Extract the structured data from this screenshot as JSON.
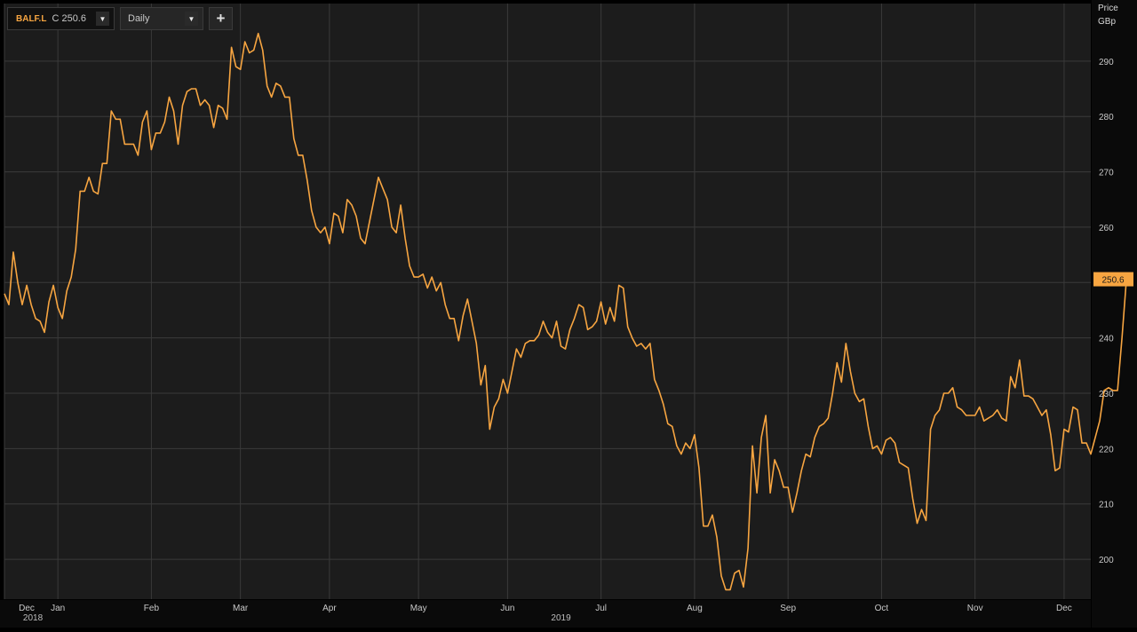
{
  "toolbar": {
    "symbol": "BALF.L",
    "close_label": "C 250.6",
    "interval": "Daily",
    "dropdown_glyph": "▼",
    "add_glyph": "+"
  },
  "axis": {
    "price_label": "Price",
    "currency_label": "GBp"
  },
  "last_price_badge": "250.6",
  "colors": {
    "background": "#1c1c1c",
    "line": "#f7a541",
    "grid": "#3a3a3a",
    "badge": "#f7a541"
  },
  "chart_data": {
    "type": "line",
    "title": "",
    "series": [
      {
        "values": [
          248,
          246,
          255.5,
          250,
          246,
          249.5,
          246,
          243.5,
          243,
          241,
          246.5,
          249.5,
          245.5,
          243.5,
          248.5,
          251,
          256,
          266.5,
          266.5,
          269,
          266.5,
          266,
          271.5,
          271.5,
          281,
          279.5,
          279.5,
          275,
          275,
          275,
          273,
          279,
          281,
          274,
          277,
          277,
          279,
          283.5,
          281,
          275,
          282,
          284.5,
          285,
          285,
          282,
          283,
          282,
          278,
          282,
          281.5,
          279.5,
          292.5,
          289,
          288.5,
          293.5,
          291.5,
          292,
          295,
          292,
          285.5,
          283.5,
          286,
          285.5,
          283.5,
          283.5,
          276,
          273,
          273,
          268.5,
          263,
          260,
          259,
          260,
          257,
          262.5,
          262,
          259,
          265,
          264,
          262,
          258,
          257,
          261,
          265,
          269,
          267,
          265,
          260,
          259,
          264,
          258,
          253,
          251,
          251,
          251.5,
          249,
          251,
          248.5,
          250,
          246,
          243.5,
          243.5,
          239.5,
          244,
          247,
          243,
          239,
          231.5,
          235,
          223.5,
          227.5,
          229,
          232.5,
          230,
          234,
          238,
          236.5,
          239,
          239.5,
          239.5,
          240.5,
          243,
          241,
          240,
          243,
          238.5,
          238,
          241.5,
          243.5,
          246,
          245.5,
          241.5,
          242,
          243,
          246.5,
          242.5,
          245.5,
          243,
          249.5,
          249,
          242,
          240,
          238.5,
          239,
          238,
          239,
          232.5,
          230.5,
          228,
          224.5,
          224,
          220.5,
          219,
          221,
          220,
          222.5,
          216.5,
          206,
          206,
          208,
          204,
          197,
          194.5,
          194.5,
          197.5,
          198,
          195,
          202,
          220.5,
          212,
          222,
          226,
          212,
          218,
          216,
          213,
          213,
          208.5,
          212,
          216,
          219,
          218.5,
          222,
          224,
          224.5,
          225.5,
          230,
          235.5,
          232,
          239,
          234,
          230,
          228.5,
          229,
          224,
          220,
          220.5,
          219,
          221.5,
          222,
          221,
          217.5,
          217,
          216.5,
          211,
          206.5,
          209,
          207,
          223.5,
          226,
          227,
          230,
          230,
          231,
          227.5,
          227,
          226,
          226,
          226,
          227.5,
          225,
          225.5,
          226,
          227,
          225.5,
          225,
          233,
          231,
          236,
          229.5,
          229.5,
          229,
          227.5,
          226,
          227,
          222.5,
          216,
          216.5,
          223.5,
          223,
          227.5,
          227,
          221,
          221,
          219,
          222,
          225,
          230.5,
          231,
          230.5,
          230.5,
          240,
          250.6
        ],
        "color": "#f7a541"
      }
    ],
    "ylim": [
      192.8,
      300.4
    ],
    "yticks": [
      200,
      210,
      220,
      230,
      240,
      250,
      260,
      270,
      280,
      290
    ],
    "xlim": [
      0,
      244
    ],
    "month_ticks": [
      {
        "label": "Dec",
        "index": 0
      },
      {
        "label": "Jan",
        "index": 12
      },
      {
        "label": "Feb",
        "index": 33
      },
      {
        "label": "Mar",
        "index": 53
      },
      {
        "label": "Apr",
        "index": 73
      },
      {
        "label": "May",
        "index": 93
      },
      {
        "label": "Jun",
        "index": 113
      },
      {
        "label": "Jul",
        "index": 134
      },
      {
        "label": "Aug",
        "index": 155
      },
      {
        "label": "Sep",
        "index": 176
      },
      {
        "label": "Oct",
        "index": 197
      },
      {
        "label": "Nov",
        "index": 218
      },
      {
        "label": "Dec",
        "index": 238
      }
    ],
    "year_labels": [
      {
        "label": "2018",
        "index": 3
      },
      {
        "label": "2019",
        "index": 125
      }
    ],
    "grid": true,
    "last_value": 250.6
  }
}
